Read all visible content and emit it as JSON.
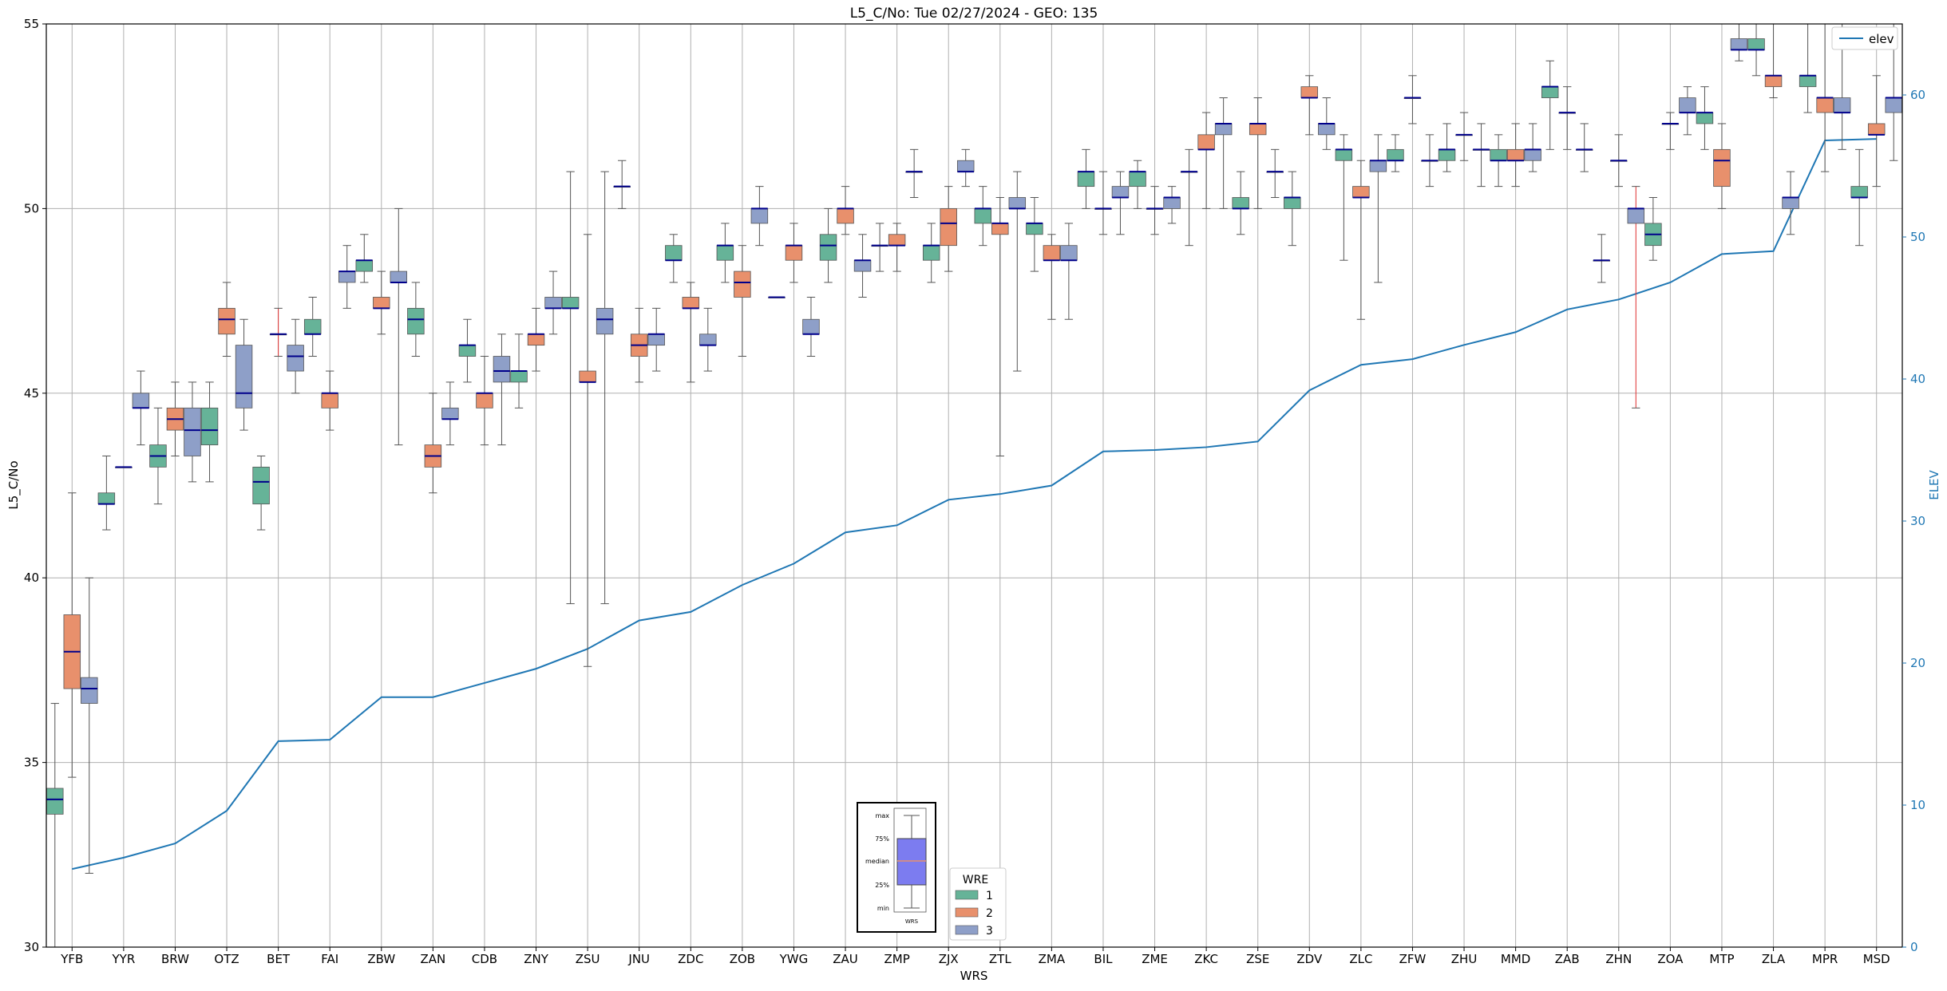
{
  "chart_data": {
    "type": "box",
    "title": "L5_C/No: Tue 02/27/2024 - GEO: 135",
    "xlabel": "WRS",
    "ylabel": "L5_C/No",
    "y2label": "ELEV",
    "ylim": [
      30,
      55
    ],
    "y2lim": [
      0,
      65
    ],
    "yticks": [
      30,
      35,
      40,
      45,
      50,
      55
    ],
    "y2ticks": [
      0,
      10,
      20,
      30,
      40,
      50,
      60
    ],
    "grid": true,
    "categories": [
      "YFB",
      "YYR",
      "BRW",
      "OTZ",
      "BET",
      "FAI",
      "ZBW",
      "ZAN",
      "CDB",
      "ZNY",
      "ZSU",
      "JNU",
      "ZDC",
      "ZOB",
      "YWG",
      "ZAU",
      "ZMP",
      "ZJX",
      "ZTL",
      "ZMA",
      "BIL",
      "ZME",
      "ZKC",
      "ZSE",
      "ZDV",
      "ZLC",
      "ZFW",
      "ZHU",
      "MMD",
      "ZAB",
      "ZHN",
      "ZOA",
      "MTP",
      "ZLA",
      "MPR",
      "MSD"
    ],
    "colors": {
      "1": "#66b398",
      "2": "#e8906c",
      "3": "#8e9fc8",
      "elev": "#1f77b4",
      "median": "#00008b",
      "outlier_whisker": "#e03030"
    },
    "legend": {
      "title": "WRE",
      "entries": [
        "1",
        "2",
        "3"
      ],
      "position": "lower-center"
    },
    "legend_key": {
      "labels": [
        "max",
        "75%",
        "median",
        "25%",
        "min"
      ],
      "xlabel": "WRS",
      "position": "lower-center"
    },
    "elev_legend": {
      "label": "elev",
      "position": "upper-right"
    },
    "elev": [
      5.5,
      6.3,
      7.3,
      9.6,
      14.5,
      14.6,
      17.6,
      17.6,
      18.6,
      19.6,
      21.0,
      23.0,
      23.6,
      25.5,
      27.0,
      29.2,
      29.7,
      31.5,
      31.9,
      32.5,
      34.9,
      35.0,
      35.2,
      35.6,
      39.2,
      41.0,
      41.4,
      42.4,
      43.3,
      44.9,
      45.6,
      46.8,
      48.8,
      49.0,
      56.8,
      56.9
    ],
    "boxes": [
      {
        "wrs": "YFB",
        "wre": "1",
        "min": 30.0,
        "q1": 33.6,
        "median": 34.0,
        "q3": 34.3,
        "max": 36.6
      },
      {
        "wrs": "YFB",
        "wre": "2",
        "min": 34.6,
        "q1": 37.0,
        "median": 38.0,
        "q3": 39.0,
        "max": 42.3
      },
      {
        "wrs": "YFB",
        "wre": "3",
        "min": 32.0,
        "q1": 36.6,
        "median": 37.0,
        "q3": 37.3,
        "max": 40.0
      },
      {
        "wrs": "YYR",
        "wre": "1",
        "min": 41.3,
        "q1": 42.0,
        "median": 42.0,
        "q3": 42.3,
        "max": 43.3
      },
      {
        "wrs": "YYR",
        "wre": "2",
        "min": 43.0,
        "q1": 43.0,
        "median": 43.0,
        "q3": 43.0,
        "max": 43.0
      },
      {
        "wrs": "YYR",
        "wre": "3",
        "min": 43.6,
        "q1": 44.6,
        "median": 44.6,
        "q3": 45.0,
        "max": 45.6
      },
      {
        "wrs": "BRW",
        "wre": "1",
        "min": 42.0,
        "q1": 43.0,
        "median": 43.3,
        "q3": 43.6,
        "max": 44.6
      },
      {
        "wrs": "BRW",
        "wre": "2",
        "min": 43.3,
        "q1": 44.0,
        "median": 44.3,
        "q3": 44.6,
        "max": 45.3
      },
      {
        "wrs": "BRW",
        "wre": "3",
        "min": 42.6,
        "q1": 43.3,
        "median": 44.0,
        "q3": 44.6,
        "max": 45.3
      },
      {
        "wrs": "OTZ",
        "wre": "1",
        "min": 42.6,
        "q1": 43.6,
        "median": 44.0,
        "q3": 44.6,
        "max": 45.3
      },
      {
        "wrs": "OTZ",
        "wre": "2",
        "min": 46.0,
        "q1": 46.6,
        "median": 47.0,
        "q3": 47.3,
        "max": 48.0
      },
      {
        "wrs": "OTZ",
        "wre": "3",
        "min": 44.0,
        "q1": 44.6,
        "median": 45.0,
        "q3": 46.3,
        "max": 47.0
      },
      {
        "wrs": "BET",
        "wre": "1",
        "min": 41.3,
        "q1": 42.0,
        "median": 42.6,
        "q3": 43.0,
        "max": 43.3
      },
      {
        "wrs": "BET",
        "wre": "2",
        "min": 46.0,
        "q1": 46.6,
        "median": 46.6,
        "q3": 46.6,
        "max": 47.3,
        "outlier": true
      },
      {
        "wrs": "BET",
        "wre": "3",
        "min": 45.0,
        "q1": 45.6,
        "median": 46.0,
        "q3": 46.3,
        "max": 47.0
      },
      {
        "wrs": "FAI",
        "wre": "1",
        "min": 46.0,
        "q1": 46.6,
        "median": 46.6,
        "q3": 47.0,
        "max": 47.6
      },
      {
        "wrs": "FAI",
        "wre": "2",
        "min": 44.0,
        "q1": 44.6,
        "median": 45.0,
        "q3": 45.0,
        "max": 45.6
      },
      {
        "wrs": "FAI",
        "wre": "3",
        "min": 47.3,
        "q1": 48.0,
        "median": 48.3,
        "q3": 48.3,
        "max": 49.0
      },
      {
        "wrs": "ZBW",
        "wre": "1",
        "min": 48.0,
        "q1": 48.3,
        "median": 48.6,
        "q3": 48.6,
        "max": 49.3
      },
      {
        "wrs": "ZBW",
        "wre": "2",
        "min": 46.6,
        "q1": 47.3,
        "median": 47.3,
        "q3": 47.6,
        "max": 48.3
      },
      {
        "wrs": "ZBW",
        "wre": "3",
        "min": 43.6,
        "q1": 48.0,
        "median": 48.0,
        "q3": 48.3,
        "max": 50.0
      },
      {
        "wrs": "ZAN",
        "wre": "1",
        "min": 46.0,
        "q1": 46.6,
        "median": 47.0,
        "q3": 47.3,
        "max": 48.0
      },
      {
        "wrs": "ZAN",
        "wre": "2",
        "min": 42.3,
        "q1": 43.0,
        "median": 43.3,
        "q3": 43.6,
        "max": 45.0
      },
      {
        "wrs": "ZAN",
        "wre": "3",
        "min": 43.6,
        "q1": 44.3,
        "median": 44.3,
        "q3": 44.6,
        "max": 45.3
      },
      {
        "wrs": "CDB",
        "wre": "1",
        "min": 45.3,
        "q1": 46.0,
        "median": 46.3,
        "q3": 46.3,
        "max": 47.0
      },
      {
        "wrs": "CDB",
        "wre": "2",
        "min": 43.6,
        "q1": 44.6,
        "median": 45.0,
        "q3": 45.0,
        "max": 46.0
      },
      {
        "wrs": "CDB",
        "wre": "3",
        "min": 43.6,
        "q1": 45.3,
        "median": 45.6,
        "q3": 46.0,
        "max": 46.6
      },
      {
        "wrs": "ZNY",
        "wre": "1",
        "min": 44.6,
        "q1": 45.3,
        "median": 45.6,
        "q3": 45.6,
        "max": 46.6
      },
      {
        "wrs": "ZNY",
        "wre": "2",
        "min": 45.6,
        "q1": 46.3,
        "median": 46.6,
        "q3": 46.6,
        "max": 47.3
      },
      {
        "wrs": "ZNY",
        "wre": "3",
        "min": 46.6,
        "q1": 47.3,
        "median": 47.3,
        "q3": 47.6,
        "max": 48.3
      },
      {
        "wrs": "ZSU",
        "wre": "1",
        "min": 39.3,
        "q1": 47.3,
        "median": 47.3,
        "q3": 47.6,
        "max": 51.0
      },
      {
        "wrs": "ZSU",
        "wre": "2",
        "min": 37.6,
        "q1": 45.3,
        "median": 45.3,
        "q3": 45.6,
        "max": 49.3
      },
      {
        "wrs": "ZSU",
        "wre": "3",
        "min": 39.3,
        "q1": 46.6,
        "median": 47.0,
        "q3": 47.3,
        "max": 51.0
      },
      {
        "wrs": "JNU",
        "wre": "1",
        "min": 50.0,
        "q1": 50.6,
        "median": 50.6,
        "q3": 50.6,
        "max": 51.3
      },
      {
        "wrs": "JNU",
        "wre": "2",
        "min": 45.3,
        "q1": 46.0,
        "median": 46.3,
        "q3": 46.6,
        "max": 47.3
      },
      {
        "wrs": "JNU",
        "wre": "3",
        "min": 45.6,
        "q1": 46.3,
        "median": 46.6,
        "q3": 46.6,
        "max": 47.3
      },
      {
        "wrs": "ZDC",
        "wre": "1",
        "min": 48.0,
        "q1": 48.6,
        "median": 48.6,
        "q3": 49.0,
        "max": 49.3
      },
      {
        "wrs": "ZDC",
        "wre": "2",
        "min": 45.3,
        "q1": 47.3,
        "median": 47.3,
        "q3": 47.6,
        "max": 48.0
      },
      {
        "wrs": "ZDC",
        "wre": "3",
        "min": 45.6,
        "q1": 46.3,
        "median": 46.3,
        "q3": 46.6,
        "max": 47.3
      },
      {
        "wrs": "ZOB",
        "wre": "1",
        "min": 48.0,
        "q1": 48.6,
        "median": 49.0,
        "q3": 49.0,
        "max": 49.6
      },
      {
        "wrs": "ZOB",
        "wre": "2",
        "min": 46.0,
        "q1": 47.6,
        "median": 48.0,
        "q3": 48.3,
        "max": 49.0
      },
      {
        "wrs": "ZOB",
        "wre": "3",
        "min": 49.0,
        "q1": 49.6,
        "median": 50.0,
        "q3": 50.0,
        "max": 50.6
      },
      {
        "wrs": "YWG",
        "wre": "1",
        "min": 47.6,
        "q1": 47.6,
        "median": 47.6,
        "q3": 47.6,
        "max": 47.6
      },
      {
        "wrs": "YWG",
        "wre": "2",
        "min": 48.0,
        "q1": 48.6,
        "median": 49.0,
        "q3": 49.0,
        "max": 49.6
      },
      {
        "wrs": "YWG",
        "wre": "3",
        "min": 46.0,
        "q1": 46.6,
        "median": 46.6,
        "q3": 47.0,
        "max": 47.6
      },
      {
        "wrs": "ZAU",
        "wre": "1",
        "min": 48.0,
        "q1": 48.6,
        "median": 49.0,
        "q3": 49.3,
        "max": 50.0
      },
      {
        "wrs": "ZAU",
        "wre": "2",
        "min": 49.3,
        "q1": 49.6,
        "median": 50.0,
        "q3": 50.0,
        "max": 50.6
      },
      {
        "wrs": "ZAU",
        "wre": "3",
        "min": 47.6,
        "q1": 48.3,
        "median": 48.6,
        "q3": 48.6,
        "max": 49.3
      },
      {
        "wrs": "ZMP",
        "wre": "1",
        "min": 48.3,
        "q1": 49.0,
        "median": 49.0,
        "q3": 49.0,
        "max": 49.6
      },
      {
        "wrs": "ZMP",
        "wre": "2",
        "min": 48.3,
        "q1": 49.0,
        "median": 49.0,
        "q3": 49.3,
        "max": 49.6
      },
      {
        "wrs": "ZMP",
        "wre": "3",
        "min": 50.3,
        "q1": 51.0,
        "median": 51.0,
        "q3": 51.0,
        "max": 51.6
      },
      {
        "wrs": "ZJX",
        "wre": "1",
        "min": 48.0,
        "q1": 48.6,
        "median": 49.0,
        "q3": 49.0,
        "max": 49.6
      },
      {
        "wrs": "ZJX",
        "wre": "2",
        "min": 48.3,
        "q1": 49.0,
        "median": 49.6,
        "q3": 50.0,
        "max": 50.6
      },
      {
        "wrs": "ZJX",
        "wre": "3",
        "min": 50.6,
        "q1": 51.0,
        "median": 51.0,
        "q3": 51.3,
        "max": 51.6
      },
      {
        "wrs": "ZTL",
        "wre": "1",
        "min": 49.0,
        "q1": 49.6,
        "median": 50.0,
        "q3": 50.0,
        "max": 50.6
      },
      {
        "wrs": "ZTL",
        "wre": "2",
        "min": 43.3,
        "q1": 49.3,
        "median": 49.6,
        "q3": 49.6,
        "max": 50.3
      },
      {
        "wrs": "ZTL",
        "wre": "3",
        "min": 45.6,
        "q1": 50.0,
        "median": 50.0,
        "q3": 50.3,
        "max": 51.0
      },
      {
        "wrs": "ZMA",
        "wre": "1",
        "min": 48.3,
        "q1": 49.3,
        "median": 49.6,
        "q3": 49.6,
        "max": 50.3
      },
      {
        "wrs": "ZMA",
        "wre": "2",
        "min": 47.0,
        "q1": 48.6,
        "median": 48.6,
        "q3": 49.0,
        "max": 49.3
      },
      {
        "wrs": "ZMA",
        "wre": "3",
        "min": 47.0,
        "q1": 48.6,
        "median": 48.6,
        "q3": 49.0,
        "max": 49.6
      },
      {
        "wrs": "BIL",
        "wre": "1",
        "min": 50.0,
        "q1": 50.6,
        "median": 51.0,
        "q3": 51.0,
        "max": 51.6
      },
      {
        "wrs": "BIL",
        "wre": "2",
        "min": 49.3,
        "q1": 50.0,
        "median": 50.0,
        "q3": 50.0,
        "max": 51.0
      },
      {
        "wrs": "BIL",
        "wre": "3",
        "min": 49.3,
        "q1": 50.3,
        "median": 50.3,
        "q3": 50.6,
        "max": 51.0
      },
      {
        "wrs": "ZME",
        "wre": "1",
        "min": 50.0,
        "q1": 50.6,
        "median": 51.0,
        "q3": 51.0,
        "max": 51.3
      },
      {
        "wrs": "ZME",
        "wre": "2",
        "min": 49.3,
        "q1": 50.0,
        "median": 50.0,
        "q3": 50.0,
        "max": 50.6
      },
      {
        "wrs": "ZME",
        "wre": "3",
        "min": 49.6,
        "q1": 50.0,
        "median": 50.3,
        "q3": 50.3,
        "max": 50.6
      },
      {
        "wrs": "ZKC",
        "wre": "1",
        "min": 49.0,
        "q1": 51.0,
        "median": 51.0,
        "q3": 51.0,
        "max": 51.6
      },
      {
        "wrs": "ZKC",
        "wre": "2",
        "min": 50.0,
        "q1": 51.6,
        "median": 51.6,
        "q3": 52.0,
        "max": 52.6
      },
      {
        "wrs": "ZKC",
        "wre": "3",
        "min": 50.0,
        "q1": 52.0,
        "median": 52.3,
        "q3": 52.3,
        "max": 53.0
      },
      {
        "wrs": "ZSE",
        "wre": "1",
        "min": 49.3,
        "q1": 50.0,
        "median": 50.0,
        "q3": 50.3,
        "max": 51.0
      },
      {
        "wrs": "ZSE",
        "wre": "2",
        "min": 50.0,
        "q1": 52.0,
        "median": 52.3,
        "q3": 52.3,
        "max": 53.0
      },
      {
        "wrs": "ZSE",
        "wre": "3",
        "min": 50.3,
        "q1": 51.0,
        "median": 51.0,
        "q3": 51.0,
        "max": 51.6
      },
      {
        "wrs": "ZDV",
        "wre": "1",
        "min": 49.0,
        "q1": 50.0,
        "median": 50.3,
        "q3": 50.3,
        "max": 51.0
      },
      {
        "wrs": "ZDV",
        "wre": "2",
        "min": 52.0,
        "q1": 53.0,
        "median": 53.0,
        "q3": 53.3,
        "max": 53.6
      },
      {
        "wrs": "ZDV",
        "wre": "3",
        "min": 51.6,
        "q1": 52.0,
        "median": 52.3,
        "q3": 52.3,
        "max": 53.0
      },
      {
        "wrs": "ZLC",
        "wre": "1",
        "min": 48.6,
        "q1": 51.3,
        "median": 51.6,
        "q3": 51.6,
        "max": 52.0
      },
      {
        "wrs": "ZLC",
        "wre": "2",
        "min": 47.0,
        "q1": 50.3,
        "median": 50.3,
        "q3": 50.6,
        "max": 51.3
      },
      {
        "wrs": "ZLC",
        "wre": "3",
        "min": 48.0,
        "q1": 51.0,
        "median": 51.3,
        "q3": 51.3,
        "max": 52.0
      },
      {
        "wrs": "ZFW",
        "wre": "1",
        "min": 51.0,
        "q1": 51.3,
        "median": 51.3,
        "q3": 51.6,
        "max": 52.0
      },
      {
        "wrs": "ZFW",
        "wre": "2",
        "min": 52.3,
        "q1": 53.0,
        "median": 53.0,
        "q3": 53.0,
        "max": 53.6
      },
      {
        "wrs": "ZFW",
        "wre": "3",
        "min": 50.6,
        "q1": 51.3,
        "median": 51.3,
        "q3": 51.3,
        "max": 52.0
      },
      {
        "wrs": "ZHU",
        "wre": "1",
        "min": 51.0,
        "q1": 51.3,
        "median": 51.6,
        "q3": 51.6,
        "max": 52.3
      },
      {
        "wrs": "ZHU",
        "wre": "2",
        "min": 51.3,
        "q1": 52.0,
        "median": 52.0,
        "q3": 52.0,
        "max": 52.6
      },
      {
        "wrs": "ZHU",
        "wre": "3",
        "min": 50.6,
        "q1": 51.6,
        "median": 51.6,
        "q3": 51.6,
        "max": 52.3
      },
      {
        "wrs": "MMD",
        "wre": "1",
        "min": 50.6,
        "q1": 51.3,
        "median": 51.3,
        "q3": 51.6,
        "max": 52.0
      },
      {
        "wrs": "MMD",
        "wre": "2",
        "min": 50.6,
        "q1": 51.3,
        "median": 51.3,
        "q3": 51.6,
        "max": 52.3
      },
      {
        "wrs": "MMD",
        "wre": "3",
        "min": 51.0,
        "q1": 51.3,
        "median": 51.6,
        "q3": 51.6,
        "max": 52.3
      },
      {
        "wrs": "ZAB",
        "wre": "1",
        "min": 51.6,
        "q1": 53.0,
        "median": 53.3,
        "q3": 53.3,
        "max": 54.0
      },
      {
        "wrs": "ZAB",
        "wre": "2",
        "min": 51.6,
        "q1": 52.6,
        "median": 52.6,
        "q3": 52.6,
        "max": 53.3
      },
      {
        "wrs": "ZAB",
        "wre": "3",
        "min": 51.0,
        "q1": 51.6,
        "median": 51.6,
        "q3": 51.6,
        "max": 52.3
      },
      {
        "wrs": "ZHN",
        "wre": "1",
        "min": 48.0,
        "q1": 48.6,
        "median": 48.6,
        "q3": 48.6,
        "max": 49.3
      },
      {
        "wrs": "ZHN",
        "wre": "2",
        "min": 50.6,
        "q1": 51.3,
        "median": 51.3,
        "q3": 51.3,
        "max": 52.0
      },
      {
        "wrs": "ZHN",
        "wre": "3",
        "min": 44.6,
        "q1": 49.6,
        "median": 50.0,
        "q3": 50.0,
        "max": 50.6,
        "outlier": true
      },
      {
        "wrs": "ZOA",
        "wre": "1",
        "min": 48.6,
        "q1": 49.0,
        "median": 49.3,
        "q3": 49.6,
        "max": 50.3
      },
      {
        "wrs": "ZOA",
        "wre": "2",
        "min": 51.6,
        "q1": 52.3,
        "median": 52.3,
        "q3": 52.3,
        "max": 52.6
      },
      {
        "wrs": "ZOA",
        "wre": "3",
        "min": 52.0,
        "q1": 52.6,
        "median": 52.6,
        "q3": 53.0,
        "max": 53.3
      },
      {
        "wrs": "MTP",
        "wre": "1",
        "min": 51.6,
        "q1": 52.3,
        "median": 52.6,
        "q3": 52.6,
        "max": 53.3
      },
      {
        "wrs": "MTP",
        "wre": "2",
        "min": 50.0,
        "q1": 50.6,
        "median": 51.3,
        "q3": 51.6,
        "max": 52.3
      },
      {
        "wrs": "MTP",
        "wre": "3",
        "min": 54.0,
        "q1": 54.3,
        "median": 54.3,
        "q3": 54.6,
        "max": 55.0
      },
      {
        "wrs": "ZLA",
        "wre": "1",
        "min": 53.6,
        "q1": 54.3,
        "median": 54.3,
        "q3": 54.6,
        "max": 55.0
      },
      {
        "wrs": "ZLA",
        "wre": "2",
        "min": 53.0,
        "q1": 53.3,
        "median": 53.6,
        "q3": 53.6,
        "max": 55.0
      },
      {
        "wrs": "ZLA",
        "wre": "3",
        "min": 49.3,
        "q1": 50.0,
        "median": 50.3,
        "q3": 50.3,
        "max": 51.0
      },
      {
        "wrs": "MPR",
        "wre": "1",
        "min": 52.6,
        "q1": 53.3,
        "median": 53.6,
        "q3": 53.6,
        "max": 55.0
      },
      {
        "wrs": "MPR",
        "wre": "2",
        "min": 51.0,
        "q1": 52.6,
        "median": 53.0,
        "q3": 53.0,
        "max": 55.0
      },
      {
        "wrs": "MPR",
        "wre": "3",
        "min": 51.6,
        "q1": 52.6,
        "median": 52.6,
        "q3": 53.0,
        "max": 55.0
      },
      {
        "wrs": "MSD",
        "wre": "1",
        "min": 49.0,
        "q1": 50.3,
        "median": 50.3,
        "q3": 50.6,
        "max": 51.6
      },
      {
        "wrs": "MSD",
        "wre": "2",
        "min": 50.6,
        "q1": 52.0,
        "median": 52.0,
        "q3": 52.3,
        "max": 53.6
      },
      {
        "wrs": "MSD",
        "wre": "3",
        "min": 51.3,
        "q1": 52.6,
        "median": 53.0,
        "q3": 53.0,
        "max": 55.0
      }
    ]
  }
}
